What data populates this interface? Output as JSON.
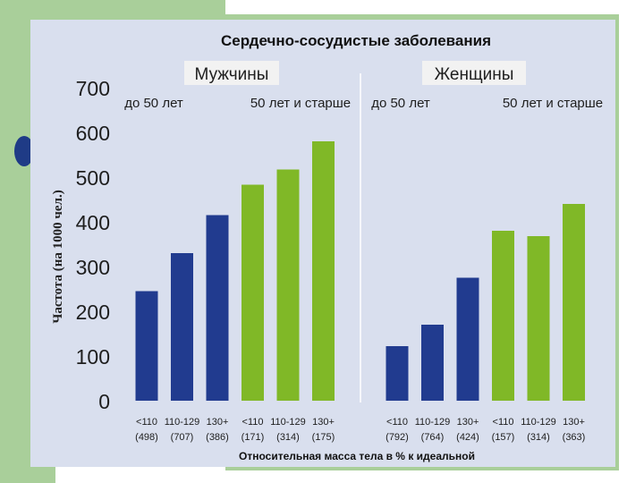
{
  "chart_data": {
    "type": "bar",
    "title": "Сердечно-сосудистые заболевания",
    "ylabel": "Частота (на 1000 чел.)",
    "xlabel": "Относительная масса тела в % к идеальной",
    "ylim": [
      0,
      700
    ],
    "yticks": [
      "0",
      "100",
      "200",
      "300",
      "400",
      "500",
      "600",
      "700"
    ],
    "groups": [
      {
        "name": "Мужчины",
        "subgroups": [
          {
            "name": "до 50 лет",
            "color": "#213b8f",
            "categories": [
              "<110",
              "110-129",
              "130+"
            ],
            "counts": [
              "(498)",
              "(707)",
              "(386)"
            ],
            "values": [
              245,
              330,
              415
            ]
          },
          {
            "name": "50 лет и старше",
            "color": "#80b827",
            "categories": [
              "<110",
              "110-129",
              "130+"
            ],
            "counts": [
              "(171)",
              "(314)",
              "(175)"
            ],
            "values": [
              483,
              517,
              580
            ]
          }
        ]
      },
      {
        "name": "Женщины",
        "subgroups": [
          {
            "name": "до 50 лет",
            "color": "#213b8f",
            "categories": [
              "<110",
              "110-129",
              "130+"
            ],
            "counts": [
              "(792)",
              "(764)",
              "(424)"
            ],
            "values": [
              122,
              170,
              275
            ]
          },
          {
            "name": "50 лет и старше",
            "color": "#80b827",
            "categories": [
              "<110",
              "110-129",
              "130+"
            ],
            "counts": [
              "(157)",
              "(314)",
              "(363)"
            ],
            "values": [
              380,
              368,
              440
            ]
          }
        ]
      }
    ]
  }
}
